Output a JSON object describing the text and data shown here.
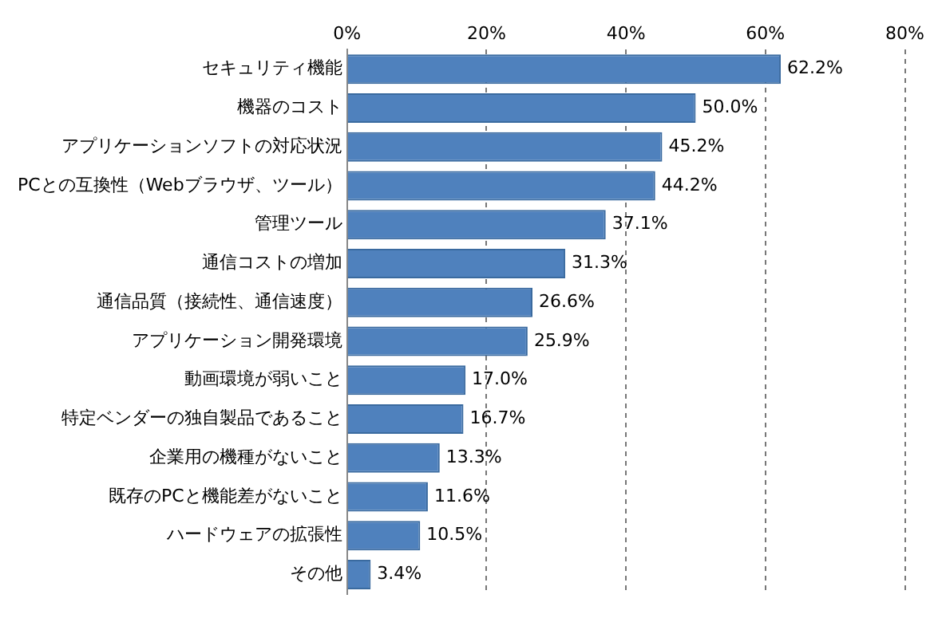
{
  "chart_data": {
    "type": "bar",
    "orientation": "horizontal",
    "categories": [
      "セキュリティ機能",
      "機器のコスト",
      "アプリケーションソフトの対応状況",
      "PCとの互換性（Webブラウザ、ツール）",
      "管理ツール",
      "通信コストの増加",
      "通信品質（接続性、通信速度）",
      "アプリケーション開発環境",
      "動画環境が弱いこと",
      "特定ベンダーの独自製品であること",
      "企業用の機種がないこと",
      "既存のPCと機能差がないこと",
      "ハードウェアの拡張性",
      "その他"
    ],
    "values": [
      62.2,
      50.0,
      45.2,
      44.2,
      37.1,
      31.3,
      26.6,
      25.9,
      17.0,
      16.7,
      13.3,
      11.6,
      10.5,
      3.4
    ],
    "value_labels": [
      "62.2%",
      "50.0%",
      "45.2%",
      "44.2%",
      "37.1%",
      "31.3%",
      "26.6%",
      "25.9%",
      "17.0%",
      "16.7%",
      "13.3%",
      "11.6%",
      "10.5%",
      "3.4%"
    ],
    "color": "#4f81bd",
    "xlim": [
      0,
      80
    ],
    "xticks": [
      {
        "value": 0,
        "label": "0%"
      },
      {
        "value": 20,
        "label": "20%"
      },
      {
        "value": 40,
        "label": "40%"
      },
      {
        "value": 60,
        "label": "60%"
      },
      {
        "value": 80,
        "label": "80%"
      }
    ],
    "grid": "x",
    "legend": false
  }
}
